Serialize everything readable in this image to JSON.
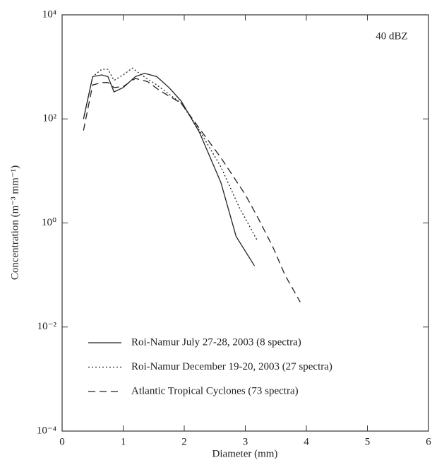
{
  "chart_data": {
    "type": "line",
    "title": "40 dBZ",
    "xlabel": "Diameter (mm)",
    "ylabel": "Concentration (m⁻³ mm⁻¹)",
    "xlim": [
      0,
      6
    ],
    "xticks": [
      0,
      1,
      2,
      3,
      4,
      5,
      6
    ],
    "ylim": [
      0.0001,
      10000
    ],
    "yscale": "log",
    "yticks": [
      {
        "value": 0.0001,
        "label": "10⁻⁴"
      },
      {
        "value": 0.01,
        "label": "10⁻²"
      },
      {
        "value": 1,
        "label": "10⁰"
      },
      {
        "value": 100,
        "label": "10²"
      },
      {
        "value": 10000,
        "label": "10⁴"
      }
    ],
    "grid": false,
    "legend": "lower left",
    "series": [
      {
        "name": "Roi-Namur July 27-28, 2003 (8 spectra)",
        "color": "#222222",
        "style": "solid",
        "x": [
          0.35,
          0.5,
          0.65,
          0.75,
          0.85,
          1.0,
          1.2,
          1.35,
          1.55,
          1.75,
          1.95,
          2.25,
          2.6,
          2.85,
          3.15
        ],
        "values": [
          100,
          650,
          700,
          650,
          330,
          400,
          650,
          750,
          650,
          400,
          220,
          55,
          6,
          0.55,
          0.15
        ]
      },
      {
        "name": "Roi-Namur December 19-20, 2003  (27 spectra)",
        "color": "#222222",
        "style": "dotted",
        "x": [
          0.35,
          0.5,
          0.65,
          0.75,
          0.85,
          1.0,
          1.15,
          1.3,
          1.55,
          1.95,
          2.25,
          2.6,
          2.9,
          3.2
        ],
        "values": [
          100,
          650,
          900,
          900,
          550,
          700,
          950,
          700,
          450,
          200,
          60,
          12,
          2,
          0.45
        ]
      },
      {
        "name": "Atlantic Tropical Cyclones (73 spectra)",
        "color": "#222222",
        "style": "dashed",
        "x": [
          0.35,
          0.5,
          0.65,
          0.75,
          0.85,
          1.0,
          1.2,
          1.4,
          1.6,
          1.95,
          2.25,
          2.6,
          3.0,
          3.2,
          3.45,
          3.65,
          3.9
        ],
        "values": [
          60,
          450,
          500,
          500,
          400,
          420,
          600,
          520,
          350,
          200,
          65,
          18,
          3.5,
          1.3,
          0.35,
          0.1,
          0.03
        ]
      }
    ]
  }
}
